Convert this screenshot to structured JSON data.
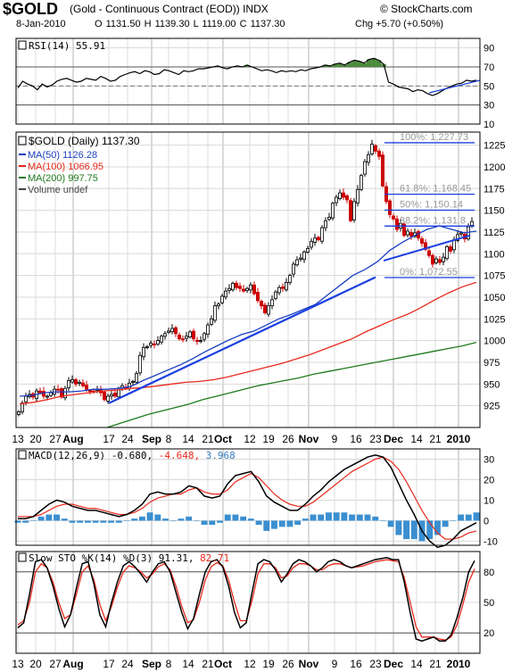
{
  "header": {
    "symbol": "$GOLD",
    "name": "(Gold - Continuous Contract (EOD)) INDX",
    "watermark": "© StockCharts.com",
    "date": "8-Jan-2010",
    "quote": "O 1131.50  H 1139.30  L 1119.00  C 1137.30",
    "change": "Chg +5.70 (+0.50%)"
  },
  "colors": {
    "price_up": "#000000",
    "price_down": "#cc0000",
    "ma50": "#1a3fc2",
    "ma100": "#e8291c",
    "ma200": "#1e7a1e",
    "trendline": "#1b3fe0",
    "fib": "#1b3fe0",
    "macd_hist": "#3b8fd0",
    "rsi_fill": "#4c8a3c"
  },
  "chart_data": [
    {
      "type": "line",
      "panel": "rsi",
      "label": "RSI(14) 55.91",
      "ylim": [
        10,
        100
      ],
      "y_ticks": [
        "90",
        "70",
        "50",
        "30",
        "10"
      ],
      "levels": [
        70,
        30
      ],
      "series": [
        {
          "name": "RSI(14)",
          "values": [
            48,
            55,
            52,
            50,
            46,
            52,
            49,
            51,
            55,
            57,
            58,
            56,
            54,
            55,
            58,
            57,
            56,
            60,
            58,
            55,
            56,
            60,
            62,
            64,
            65,
            63,
            66,
            65,
            62,
            63,
            67,
            66,
            64,
            62,
            66,
            65,
            66,
            68,
            68,
            69,
            70,
            71,
            69,
            68,
            70,
            71,
            70,
            72,
            70,
            68,
            66,
            67,
            66,
            64,
            66,
            65,
            66,
            65,
            67,
            66,
            68,
            69,
            70,
            72,
            71,
            73,
            74,
            72,
            75,
            77,
            76,
            74,
            78,
            79,
            77,
            73,
            54,
            52,
            49,
            48,
            47,
            44,
            46,
            45,
            42,
            40,
            42,
            45,
            48,
            50,
            52,
            53,
            56,
            55,
            56
          ]
        }
      ]
    },
    {
      "type": "candlestick",
      "panel": "price",
      "label": "$GOLD (Daily) 1137.30",
      "legend": [
        "MA(50) 1126.28",
        "MA(100) 1066.95",
        "MA(200) 997.75",
        "Volume undef"
      ],
      "ylim": [
        900,
        1240
      ],
      "y_ticks": [
        "1225",
        "1200",
        "1175",
        "1150",
        "1125",
        "1100",
        "1075",
        "1050",
        "1025",
        "1000",
        "975",
        "950",
        "925"
      ],
      "x_tick_labels": [
        "13",
        "20",
        "27",
        "Aug",
        "17",
        "24",
        "Sep",
        "8",
        "14",
        "21",
        "Oct",
        "12",
        "19",
        "26",
        "Nov",
        "9",
        "16",
        "23",
        "Dec",
        "14",
        "21",
        "2010"
      ],
      "closes": [
        918,
        928,
        936,
        938,
        935,
        942,
        940,
        936,
        936,
        940,
        944,
        943,
        935,
        945,
        954,
        955,
        950,
        952,
        948,
        944,
        942,
        941,
        944,
        940,
        932,
        936,
        938,
        936,
        945,
        948,
        945,
        951,
        953,
        962,
        983,
        992,
        993,
        997,
        995,
        1000,
        1005,
        1008,
        1011,
        1014,
        1008,
        1002,
        1001,
        1005,
        1010,
        1002,
        999,
        1000,
        1008,
        1018,
        1025,
        1040,
        1042,
        1051,
        1057,
        1060,
        1066,
        1061,
        1060,
        1057,
        1060,
        1064,
        1054,
        1046,
        1040,
        1032,
        1040,
        1047,
        1056,
        1061,
        1060,
        1067,
        1075,
        1088,
        1093,
        1095,
        1102,
        1106,
        1114,
        1118,
        1116,
        1130,
        1138,
        1142,
        1158,
        1165,
        1170,
        1165,
        1162,
        1138,
        1160,
        1174,
        1190,
        1206,
        1214,
        1226,
        1218,
        1212,
        1178,
        1160,
        1145,
        1140,
        1128,
        1135,
        1121,
        1126,
        1120,
        1124,
        1118,
        1112,
        1105,
        1098,
        1088,
        1094,
        1090,
        1096,
        1108,
        1103,
        1116,
        1122,
        1124,
        1117,
        1131,
        1137
      ],
      "ma50": {
        "name": "MA(50) 1126.28",
        "values": [
          936,
          937,
          940,
          941,
          941,
          942,
          944,
          944,
          945,
          947,
          954,
          960,
          966,
          972,
          979,
          987,
          994,
          1001,
          1007,
          1011,
          1018,
          1025,
          1030,
          1036,
          1042,
          1053,
          1064,
          1075,
          1082,
          1091,
          1104,
          1113,
          1121,
          1128,
          1132,
          1128,
          1124,
          1126
        ]
      },
      "ma100": {
        "name": "MA(100) 1066.95",
        "values": [
          927,
          929,
          932,
          936,
          938,
          940,
          942,
          943,
          945,
          946,
          948,
          950,
          952,
          953,
          955,
          958,
          962,
          966,
          970,
          974,
          979,
          984,
          990,
          996,
          1002,
          1010,
          1017,
          1024,
          1030,
          1038,
          1047,
          1055,
          1062,
          1067
        ]
      },
      "ma200": {
        "name": "MA(200) 997.75",
        "values": [
          900,
          905,
          910,
          915,
          919,
          923,
          927,
          932,
          936,
          940,
          944,
          948,
          951,
          954,
          957,
          961,
          964,
          967,
          970,
          973,
          976,
          979,
          982,
          985,
          988,
          991,
          994,
          998
        ]
      },
      "trendlines": [
        {
          "from": [
            928,
            1100
          ],
          "to": [
            1073,
            1085
          ]
        },
        {
          "from": [
            937,
            1222
          ],
          "to": [
            1092,
            1121
          ]
        }
      ],
      "fibonacci": [
        {
          "label": "100%: 1,227.73",
          "value": 1227.73
        },
        {
          "label": "61.8%: 1,168.45",
          "value": 1168.45
        },
        {
          "label": "50%: 1,150.14",
          "value": 1150.14
        },
        {
          "label": "38.2%: 1,131.8",
          "value": 1131.8
        },
        {
          "label": "0%: 1,072.55",
          "value": 1072.55
        }
      ]
    },
    {
      "type": "line",
      "panel": "macd",
      "label_prefix": "MACD(12,26,9)",
      "label_values": [
        "-0.680",
        "-4.648",
        "3.968"
      ],
      "ylim": [
        -12,
        35
      ],
      "y_ticks": [
        "30",
        "20",
        "10",
        "0",
        "-10"
      ],
      "series": [
        {
          "name": "MACD",
          "values": [
            1,
            1,
            2,
            5,
            8,
            10,
            9,
            7,
            6,
            5,
            5,
            4,
            3,
            2,
            3,
            5,
            8,
            13,
            14,
            13,
            13,
            14,
            17,
            16,
            12,
            11,
            12,
            18,
            22,
            23,
            24,
            19,
            12,
            9,
            7,
            5,
            5,
            8,
            12,
            15,
            19,
            22,
            25,
            27,
            29,
            31,
            32,
            31,
            26,
            18,
            10,
            3,
            -5,
            -10,
            -13,
            -12,
            -9,
            -5,
            -3,
            -1
          ]
        },
        {
          "name": "Signal",
          "values": [
            2,
            2,
            2,
            3,
            5,
            7,
            8,
            8,
            7,
            6,
            6,
            5,
            4,
            3,
            3,
            4,
            6,
            9,
            11,
            12,
            13,
            13,
            15,
            16,
            14,
            13,
            13,
            15,
            19,
            21,
            23,
            21,
            17,
            13,
            10,
            8,
            7,
            7,
            9,
            12,
            15,
            18,
            21,
            24,
            26,
            28,
            30,
            31,
            29,
            25,
            19,
            12,
            5,
            -1,
            -6,
            -9,
            -9,
            -8,
            -6,
            -5
          ]
        },
        {
          "name": "Histogram",
          "values": [
            -1,
            -1,
            0,
            2,
            3,
            3,
            1,
            -1,
            -1,
            -1,
            -1,
            -1,
            -1,
            -1,
            0,
            1,
            2,
            4,
            3,
            1,
            0,
            1,
            2,
            0,
            -2,
            -2,
            -1,
            3,
            3,
            2,
            1,
            -2,
            -5,
            -4,
            -3,
            -3,
            -2,
            1,
            3,
            3,
            4,
            4,
            4,
            3,
            3,
            3,
            2,
            0,
            -3,
            -7,
            -9,
            -9,
            -10,
            -9,
            -7,
            -3,
            0,
            3,
            3,
            4
          ]
        }
      ]
    },
    {
      "type": "line",
      "panel": "stochastic",
      "label_prefix": "Slow STO %K(14) %D(3)",
      "label_values": [
        "91.31",
        "82.71"
      ],
      "ylim": [
        0,
        100
      ],
      "y_ticks": [
        "80",
        "50",
        "20"
      ],
      "levels": [
        80,
        20
      ],
      "x_tick_labels": [
        "13",
        "20",
        "27",
        "Aug",
        "17",
        "24",
        "Sep",
        "8",
        "14",
        "21",
        "Oct",
        "12",
        "19",
        "26",
        "Nov",
        "9",
        "16",
        "23",
        "Dec",
        "14",
        "21",
        "2010"
      ],
      "series": [
        {
          "name": "%K(14)",
          "values": [
            25,
            30,
            58,
            90,
            92,
            84,
            66,
            44,
            26,
            38,
            64,
            88,
            90,
            68,
            38,
            26,
            50,
            70,
            86,
            90,
            85,
            78,
            70,
            80,
            88,
            90,
            80,
            60,
            40,
            24,
            34,
            58,
            80,
            90,
            92,
            85,
            66,
            40,
            25,
            30,
            60,
            88,
            92,
            90,
            82,
            70,
            78,
            88,
            92,
            90,
            86,
            80,
            84,
            90,
            92,
            90,
            86,
            84,
            86,
            88,
            90,
            92,
            93,
            94,
            92,
            92,
            70,
            40,
            14,
            12,
            14,
            16,
            12,
            12,
            18,
            35,
            55,
            80,
            91
          ]
        },
        {
          "name": "%D(3)",
          "values": [
            28,
            32,
            50,
            80,
            88,
            84,
            70,
            50,
            34,
            38,
            58,
            80,
            86,
            72,
            48,
            32,
            46,
            65,
            80,
            86,
            84,
            80,
            74,
            78,
            85,
            88,
            82,
            66,
            46,
            30,
            33,
            50,
            72,
            85,
            89,
            86,
            72,
            50,
            32,
            32,
            52,
            78,
            88,
            88,
            84,
            74,
            76,
            84,
            88,
            88,
            86,
            82,
            82,
            86,
            88,
            88,
            86,
            84,
            85,
            86,
            88,
            90,
            91,
            92,
            91,
            90,
            74,
            50,
            26,
            16,
            16,
            16,
            14,
            13,
            16,
            28,
            48,
            70,
            83
          ]
        }
      ]
    }
  ]
}
